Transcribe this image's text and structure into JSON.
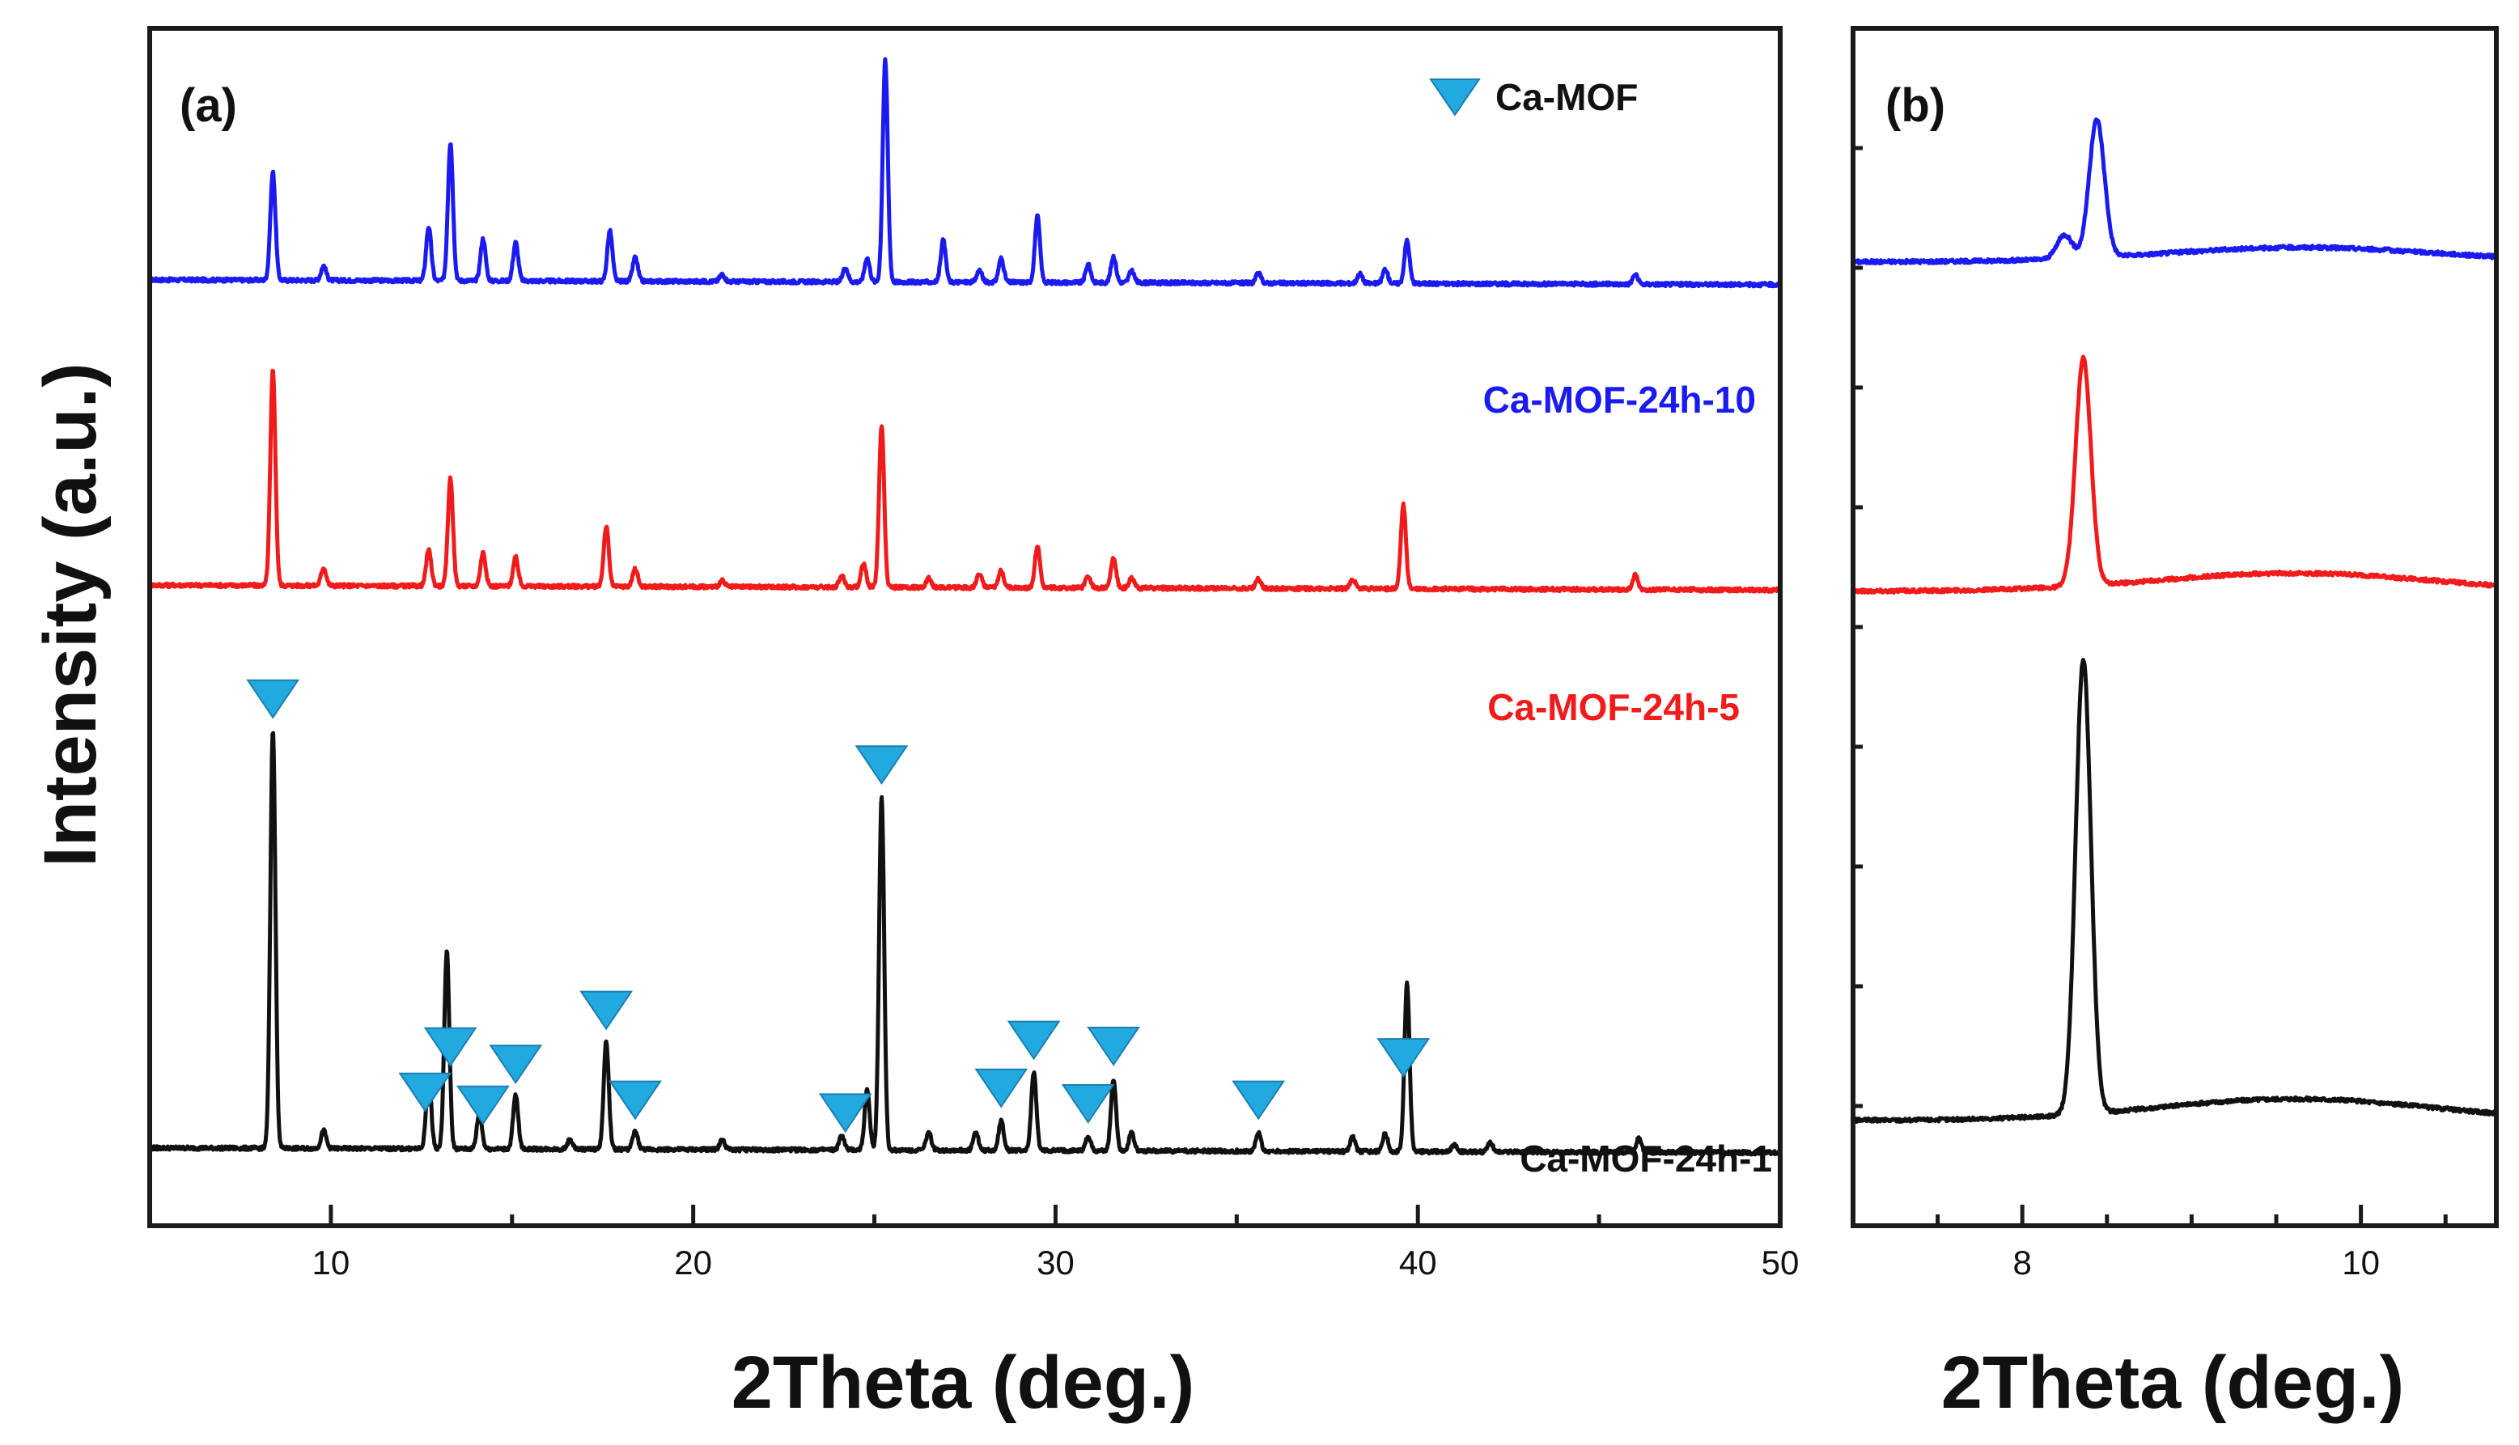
{
  "chart_data": [
    {
      "panel": "(a)",
      "type": "line",
      "xlabel": "2Theta (deg.)",
      "ylabel": "Intensity (a.u.)",
      "xlim": [
        5,
        50
      ],
      "xticks": [
        10,
        20,
        30,
        40,
        50
      ],
      "legend": {
        "label": "Ca-MOF",
        "marker": "inverted-triangle",
        "color": "#22a9e0",
        "position": "top-right"
      },
      "series": [
        {
          "name": "Ca-MOF-24h-10",
          "color": "#1b1bf0",
          "baseline": 0.79,
          "peaks": [
            [
              8.4,
              0.09
            ],
            [
              9.8,
              0.012
            ],
            [
              12.7,
              0.045
            ],
            [
              13.3,
              0.115
            ],
            [
              14.2,
              0.035
            ],
            [
              15.1,
              0.032
            ],
            [
              17.7,
              0.042
            ],
            [
              18.4,
              0.02
            ],
            [
              20.8,
              0.006
            ],
            [
              24.2,
              0.012
            ],
            [
              24.8,
              0.02
            ],
            [
              25.3,
              0.185
            ],
            [
              26.9,
              0.035
            ],
            [
              27.9,
              0.01
            ],
            [
              28.5,
              0.02
            ],
            [
              29.5,
              0.055
            ],
            [
              30.9,
              0.015
            ],
            [
              31.6,
              0.022
            ],
            [
              32.1,
              0.01
            ],
            [
              35.6,
              0.008
            ],
            [
              38.4,
              0.008
            ],
            [
              39.1,
              0.012
            ],
            [
              39.7,
              0.036
            ],
            [
              46.0,
              0.008
            ]
          ]
        },
        {
          "name": "Ca-MOF-24h-5",
          "color": "#f01c1c",
          "baseline": 0.535,
          "peaks": [
            [
              8.4,
              0.18
            ],
            [
              9.8,
              0.015
            ],
            [
              12.7,
              0.03
            ],
            [
              13.3,
              0.09
            ],
            [
              14.2,
              0.028
            ],
            [
              15.1,
              0.024
            ],
            [
              17.6,
              0.05
            ],
            [
              18.4,
              0.015
            ],
            [
              20.8,
              0.005
            ],
            [
              24.1,
              0.01
            ],
            [
              24.7,
              0.02
            ],
            [
              25.2,
              0.135
            ],
            [
              26.5,
              0.008
            ],
            [
              27.9,
              0.012
            ],
            [
              28.5,
              0.015
            ],
            [
              29.5,
              0.035
            ],
            [
              30.9,
              0.01
            ],
            [
              31.6,
              0.025
            ],
            [
              32.1,
              0.008
            ],
            [
              35.6,
              0.008
            ],
            [
              38.2,
              0.008
            ],
            [
              39.6,
              0.07
            ],
            [
              46.0,
              0.012
            ]
          ]
        },
        {
          "name": "Ca-MOF-24h-1",
          "color": "#111111",
          "baseline": 0.065,
          "peaks": [
            [
              8.4,
              0.35
            ],
            [
              9.8,
              0.015
            ],
            [
              12.7,
              0.06
            ],
            [
              13.2,
              0.165
            ],
            [
              14.1,
              0.03
            ],
            [
              15.1,
              0.045
            ],
            [
              16.6,
              0.008
            ],
            [
              17.6,
              0.09
            ],
            [
              18.4,
              0.015
            ],
            [
              20.8,
              0.008
            ],
            [
              24.1,
              0.012
            ],
            [
              24.8,
              0.05
            ],
            [
              25.2,
              0.295
            ],
            [
              26.5,
              0.015
            ],
            [
              27.8,
              0.015
            ],
            [
              28.5,
              0.025
            ],
            [
              29.4,
              0.065
            ],
            [
              30.9,
              0.012
            ],
            [
              31.6,
              0.06
            ],
            [
              32.1,
              0.015
            ],
            [
              35.6,
              0.015
            ],
            [
              38.2,
              0.012
            ],
            [
              39.1,
              0.015
            ],
            [
              39.7,
              0.14
            ],
            [
              41.0,
              0.006
            ],
            [
              42.0,
              0.008
            ],
            [
              46.1,
              0.012
            ]
          ]
        }
      ],
      "markers_2theta": [
        8.4,
        12.6,
        13.3,
        14.2,
        15.1,
        17.6,
        18.4,
        24.2,
        25.2,
        28.5,
        29.4,
        30.9,
        31.6,
        35.6,
        39.6
      ]
    },
    {
      "panel": "(b)",
      "type": "line",
      "xlabel": "2Theta (deg.)",
      "xlim": [
        7.0,
        10.8
      ],
      "xticks": [
        8,
        10
      ],
      "series": [
        {
          "name": "Ca-MOF-24h-10",
          "color": "#1b1bf0",
          "baseline": 0.805,
          "peaks": [
            [
              8.44,
              0.115
            ],
            [
              8.25,
              0.02
            ]
          ],
          "hump": [
            9.65,
            0.012
          ]
        },
        {
          "name": "Ca-MOF-24h-5",
          "color": "#f01c1c",
          "baseline": 0.53,
          "peaks": [
            [
              8.36,
              0.19
            ]
          ],
          "hump": [
            9.6,
            0.015
          ]
        },
        {
          "name": "Ca-MOF-24h-1",
          "color": "#111111",
          "baseline": 0.088,
          "peaks": [
            [
              8.36,
              0.38
            ]
          ],
          "hump": [
            9.6,
            0.018
          ]
        }
      ]
    }
  ]
}
